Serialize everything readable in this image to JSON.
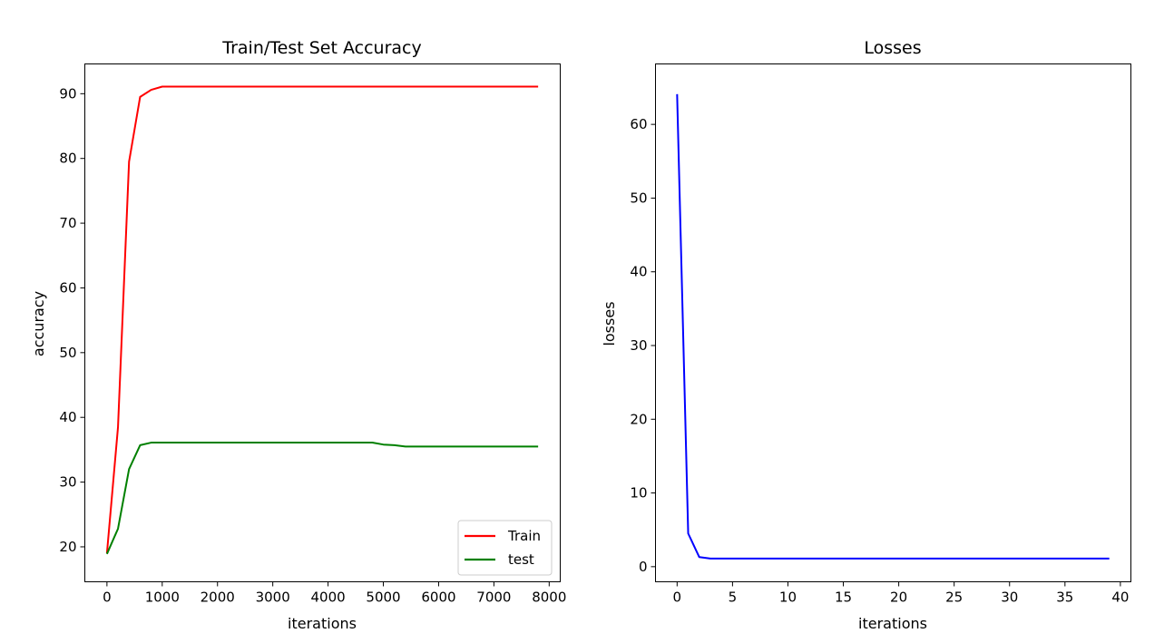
{
  "chart_data": [
    {
      "type": "line",
      "title": "Train/Test Set Accuracy",
      "xlabel": "iterations",
      "ylabel": "accuracy",
      "xlim": [
        -400,
        8200
      ],
      "ylim": [
        14.6,
        94.6
      ],
      "xticks": [
        0,
        1000,
        2000,
        3000,
        4000,
        5000,
        6000,
        7000,
        8000
      ],
      "yticks": [
        20,
        30,
        40,
        50,
        60,
        70,
        80,
        90
      ],
      "grid": false,
      "legend": "lower-right",
      "series": [
        {
          "name": "Train",
          "color": "#ff0000",
          "x": [
            0,
            200,
            400,
            600,
            800,
            1000,
            1200,
            1400,
            1600,
            1800,
            2000,
            3000,
            4000,
            5000,
            6000,
            7000,
            7800
          ],
          "y": [
            19.0,
            38.5,
            79.5,
            89.5,
            90.6,
            91.1,
            91.1,
            91.1,
            91.1,
            91.1,
            91.1,
            91.1,
            91.1,
            91.1,
            91.1,
            91.1,
            91.1
          ]
        },
        {
          "name": "test",
          "color": "#008000",
          "x": [
            0,
            200,
            400,
            600,
            800,
            1000,
            2000,
            3000,
            4000,
            4800,
            5000,
            5200,
            5400,
            6000,
            7000,
            7800
          ],
          "y": [
            18.9,
            22.8,
            32.0,
            35.7,
            36.1,
            36.1,
            36.1,
            36.1,
            36.1,
            36.1,
            35.8,
            35.7,
            35.5,
            35.5,
            35.5,
            35.5
          ]
        }
      ]
    },
    {
      "type": "line",
      "title": "Losses",
      "xlabel": "iterations",
      "ylabel": "losses",
      "xlim": [
        -1.95,
        40.95
      ],
      "ylim": [
        -2.05,
        68.2
      ],
      "xticks": [
        0,
        5,
        10,
        15,
        20,
        25,
        30,
        35,
        40
      ],
      "yticks": [
        0,
        10,
        20,
        30,
        40,
        50,
        60
      ],
      "grid": false,
      "series": [
        {
          "color": "#0000ff",
          "x": [
            0,
            1,
            2,
            3,
            4,
            5,
            6,
            7,
            8,
            9,
            10,
            11,
            12,
            13,
            14,
            15,
            16,
            17,
            18,
            19,
            20,
            21,
            22,
            23,
            24,
            25,
            26,
            27,
            28,
            29,
            30,
            31,
            32,
            33,
            34,
            35,
            36,
            37,
            38,
            39
          ],
          "y": [
            64.1,
            4.5,
            1.3,
            1.1,
            1.1,
            1.1,
            1.1,
            1.1,
            1.1,
            1.1,
            1.1,
            1.1,
            1.1,
            1.1,
            1.1,
            1.1,
            1.1,
            1.1,
            1.1,
            1.1,
            1.1,
            1.1,
            1.1,
            1.1,
            1.1,
            1.1,
            1.1,
            1.1,
            1.1,
            1.1,
            1.1,
            1.1,
            1.1,
            1.1,
            1.1,
            1.1,
            1.1,
            1.1,
            1.1,
            1.1
          ]
        }
      ]
    }
  ]
}
